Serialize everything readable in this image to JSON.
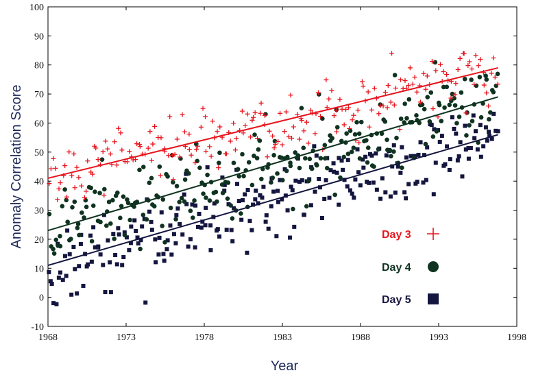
{
  "chart_data": {
    "type": "scatter",
    "title": "",
    "xlabel": "Year",
    "ylabel": "Anomaly Correlation Score",
    "xlim": [
      1968,
      1998
    ],
    "ylim": [
      -10,
      100
    ],
    "xticks": [
      "1968",
      "1973",
      "1978",
      "1983",
      "1988",
      "1993",
      "1998"
    ],
    "yticks": [
      "-10",
      "0",
      "10",
      "20",
      "30",
      "40",
      "50",
      "60",
      "70",
      "80",
      "90",
      "100"
    ],
    "legend_position": "right-middle",
    "grid": false,
    "series": [
      {
        "name": "Day 3",
        "marker": "plus",
        "color": "#e8141c",
        "trend": {
          "start": [
            1968,
            41
          ],
          "end": [
            1996.8,
            79
          ]
        },
        "spread": 6,
        "n": 220,
        "x_range": [
          1968,
          1996.8
        ]
      },
      {
        "name": "Day 4",
        "marker": "circle",
        "color": "#0f3320",
        "trend": {
          "start": [
            1968,
            23
          ],
          "end": [
            1996.8,
            69
          ]
        },
        "spread": 7,
        "n": 260,
        "x_range": [
          1968,
          1996.8
        ]
      },
      {
        "name": "Day 5",
        "marker": "square",
        "color": "#14163f",
        "trend": {
          "start": [
            1968,
            11
          ],
          "end": [
            1996.8,
            56
          ]
        },
        "spread": 7,
        "n": 260,
        "x_range": [
          1968,
          1996.8
        ]
      }
    ]
  }
}
